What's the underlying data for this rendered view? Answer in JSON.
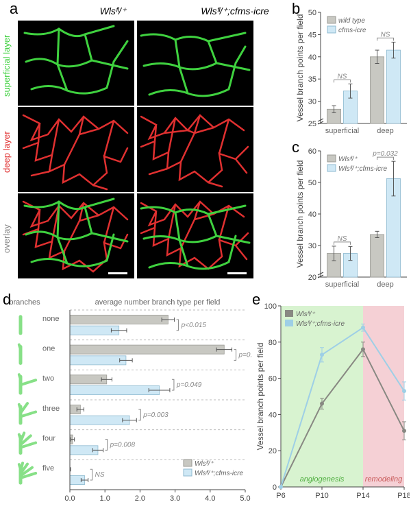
{
  "panel_a": {
    "col_headers": [
      "Wlsᶠˡ/⁺",
      "Wlsᶠˡ/⁺;cfms-icre"
    ],
    "row_labels": [
      "superficial layer",
      "deep layer",
      "overlay"
    ],
    "superficial_color": "#3fd13f",
    "deep_color": "#e03030",
    "background": "#000000"
  },
  "panel_b": {
    "ylabel": "Vessel branch points per field",
    "ylim": [
      25,
      50
    ],
    "ytick_step": 5,
    "categories": [
      "superficial",
      "deep"
    ],
    "series": [
      {
        "label": "wild type",
        "color": "#c8c8c2",
        "border": "#9a9a94",
        "values": [
          28.2,
          40.0
        ],
        "err": [
          0.8,
          1.5
        ]
      },
      {
        "label": "cfms-icre",
        "color": "#cfe8f5",
        "border": "#8fbad0",
        "values": [
          32.3,
          41.5
        ],
        "err": [
          1.6,
          1.8
        ]
      }
    ],
    "sig": [
      "NS",
      "NS"
    ]
  },
  "panel_c": {
    "ylabel": "Vessel branch points per field",
    "ylim": [
      20,
      60
    ],
    "ytick_step": 10,
    "categories": [
      "superficial",
      "deep"
    ],
    "series": [
      {
        "label": "Wlsᶠˡ/⁺",
        "color": "#c8c8c2",
        "border": "#9a9a94",
        "values": [
          27.5,
          33.5
        ],
        "err": [
          2.3,
          1.0
        ]
      },
      {
        "label": "Wlsᶠˡ/⁺;cfms-icre",
        "color": "#cfe8f5",
        "border": "#8fbad0",
        "values": [
          27.5,
          51.2
        ],
        "err": [
          2.2,
          5.5
        ]
      }
    ],
    "sig": [
      "NS",
      "p=0.032"
    ]
  },
  "panel_d": {
    "xlabel": "average number branch type per field",
    "xlim": [
      0,
      5
    ],
    "xtick_step": 1.0,
    "branch_header": "branches",
    "categories": [
      "none",
      "one",
      "two",
      "three",
      "four",
      "five"
    ],
    "branch_counts": [
      0,
      1,
      2,
      3,
      4,
      5
    ],
    "icon_color": "#87e087",
    "series": [
      {
        "label": "Wlsᶠˡ/⁺",
        "color": "#c8c8c2",
        "border": "#9a9a94",
        "values": [
          2.8,
          4.4,
          1.05,
          0.3,
          0.08,
          0.0
        ],
        "err": [
          0.18,
          0.22,
          0.15,
          0.1,
          0.05,
          0.02
        ]
      },
      {
        "label": "Wlsᶠˡ/⁺;cfms-icre",
        "color": "#cfe8f5",
        "border": "#8fbad0",
        "values": [
          1.4,
          1.6,
          2.55,
          1.7,
          0.8,
          0.42
        ],
        "err": [
          0.22,
          0.18,
          0.3,
          0.2,
          0.15,
          0.1
        ]
      }
    ],
    "sig": [
      "p<0.015",
      "p=0.001",
      "p=0.049",
      "p=0.003",
      "p=0.008",
      "NS"
    ]
  },
  "panel_e": {
    "ylabel": "Vessel branch points per field",
    "ylim": [
      0,
      100
    ],
    "ytick_step": 20,
    "xcats": [
      "P6",
      "P10",
      "P14",
      "P18"
    ],
    "series": [
      {
        "label": "Wlsᶠˡ/⁺",
        "color": "#888882",
        "values": [
          0,
          46,
          76,
          31
        ],
        "err": [
          0,
          3,
          4,
          5
        ]
      },
      {
        "label": "Wlsᶠˡ/⁺;cfms-icre",
        "color": "#9ecfe6",
        "values": [
          0,
          73,
          88,
          53
        ],
        "err": [
          0,
          4,
          2,
          5
        ]
      }
    ],
    "phases": [
      {
        "label": "angiogenesis",
        "color": "#d8f3d0",
        "text_color": "#4fae3f",
        "from": 0,
        "to": 2
      },
      {
        "label": "remodeling",
        "color": "#f5d0d5",
        "text_color": "#c85a5a",
        "from": 2,
        "to": 3
      }
    ]
  }
}
